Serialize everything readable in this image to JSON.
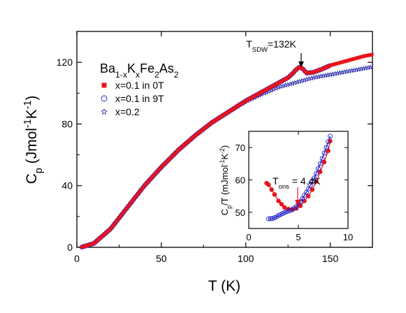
{
  "chart_data": [
    {
      "type": "scatter",
      "role": "main",
      "xlabel": "T (K)",
      "ylabel": "C_p (Jmol^-1K^-1)",
      "xlim": [
        0,
        175
      ],
      "ylim": [
        0,
        140
      ],
      "xticks": [
        0,
        50,
        100,
        150
      ],
      "yticks": [
        0,
        40,
        80,
        120
      ],
      "legend": {
        "title": "Ba1-xKxFe2As2",
        "placement": "top-left",
        "entries": [
          {
            "label": "x=0.1 in 0T",
            "marker": "filled-square",
            "color": "#e8141b"
          },
          {
            "label": "x=0.1 in 9T",
            "marker": "open-circle",
            "color": "#1e1ec8"
          },
          {
            "label": "x=0.2",
            "marker": "star",
            "color": "#2a2aa8"
          }
        ]
      },
      "annotation": {
        "text": "T_SDW=132K",
        "x": 132,
        "y": 117
      },
      "series": [
        {
          "name": "x=0.1 in 0T",
          "x": [
            3,
            10,
            20,
            30,
            40,
            50,
            60,
            70,
            80,
            90,
            100,
            110,
            120,
            125,
            128,
            130,
            132,
            134,
            136,
            140,
            145,
            150,
            160,
            170,
            175
          ],
          "y": [
            0.2,
            2.5,
            12,
            26,
            40,
            52,
            63,
            72.5,
            81,
            88,
            95,
            101,
            107,
            110,
            113,
            115.5,
            117,
            115.5,
            113,
            113.5,
            115.5,
            118,
            121,
            124,
            125
          ]
        },
        {
          "name": "x=0.1 in 9T",
          "x": [
            3,
            10,
            20,
            30,
            40,
            50,
            60,
            70,
            80,
            90,
            100,
            110,
            120,
            125,
            128,
            130,
            132,
            134,
            136,
            140,
            145,
            150
          ],
          "y": [
            0.2,
            2.5,
            12,
            26,
            40,
            52,
            63,
            72.5,
            81,
            88,
            95,
            101,
            107,
            110,
            113,
            115.5,
            117,
            115.5,
            113,
            113.5,
            115.5,
            118
          ]
        },
        {
          "name": "x=0.2",
          "x": [
            3,
            10,
            20,
            30,
            40,
            50,
            60,
            70,
            80,
            90,
            100,
            110,
            120,
            130,
            140,
            150,
            160,
            170,
            175
          ],
          "y": [
            0.2,
            2.5,
            12,
            26,
            40,
            52,
            63,
            72.5,
            81,
            88,
            94.5,
            99.5,
            104,
            107,
            110,
            112,
            114,
            116,
            117
          ]
        }
      ]
    },
    {
      "type": "scatter",
      "role": "inset",
      "xlabel": "T (K)",
      "ylabel": "C_p/T (mJmol^-1K^-2)",
      "xlim": [
        0,
        10
      ],
      "ylim": [
        45,
        75
      ],
      "xticks": [
        0,
        5,
        10
      ],
      "yticks": [
        50,
        60,
        70
      ],
      "annotation": {
        "text": "T_ons = 4.4K",
        "x": 4.4,
        "y": 51
      },
      "series": [
        {
          "name": "x=0.1 in 0T",
          "x": [
            1.8,
            2.0,
            2.3,
            2.6,
            3.0,
            3.3,
            3.6,
            4.0,
            4.4,
            4.8,
            5.2,
            5.6,
            6.0,
            6.4,
            6.8,
            7.2,
            7.6,
            8.0,
            8.2
          ],
          "y": [
            59,
            58.5,
            57,
            55.5,
            53.5,
            52.5,
            51.5,
            51,
            50.8,
            51.2,
            52,
            53.5,
            55,
            57,
            59.5,
            62.5,
            65.5,
            69,
            72
          ]
        },
        {
          "name": "x=0.1 in 9T",
          "x": [
            2.0,
            2.2,
            2.4,
            2.6,
            2.8,
            3.0,
            3.2,
            3.4,
            3.6,
            3.8,
            4.0,
            4.2,
            4.4,
            4.6,
            4.8,
            5.0,
            5.2,
            5.4,
            5.6,
            5.8,
            6.0,
            6.2,
            6.4,
            6.6,
            6.8,
            7.0,
            7.2,
            7.4,
            7.6,
            7.8,
            8.0,
            8.2
          ],
          "y": [
            48,
            48,
            48.1,
            48.3,
            48.6,
            49,
            49.3,
            49.6,
            49.9,
            50.2,
            50.4,
            50.6,
            50.9,
            51.3,
            51.8,
            52.5,
            53.3,
            54.2,
            55.2,
            56.2,
            57.2,
            58.3,
            59.4,
            60.6,
            62,
            63.5,
            65,
            66.6,
            68.3,
            70,
            71.8,
            73.5
          ]
        }
      ]
    }
  ]
}
